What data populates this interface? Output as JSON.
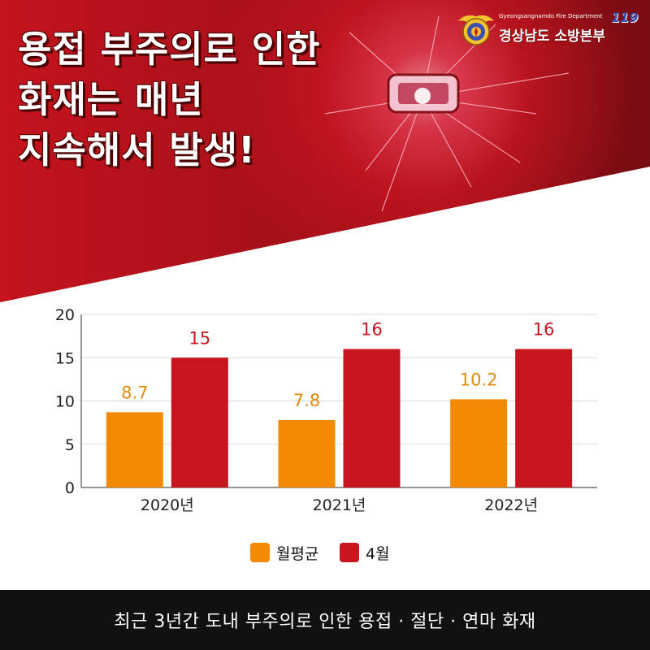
{
  "header": {
    "headline_lines": [
      "용접 부주의로 인한",
      "화재는 매년",
      "지속해서 발생!"
    ],
    "dept_english": "Gyeongsangnamdo Fire Department",
    "dept_badge": "119",
    "dept_korean": "경상남도 소방본부",
    "colors": {
      "red": "#c8141e",
      "dark_red": "#8e0c12",
      "orange": "#f38a06"
    }
  },
  "chart_data": {
    "type": "bar",
    "categories": [
      "2020년",
      "2021년",
      "2022년"
    ],
    "series": [
      {
        "name": "월평균",
        "values": [
          8.7,
          7.8,
          10.2
        ],
        "color": "#f38a06",
        "label_color": "#e08a12"
      },
      {
        "name": "4월",
        "values": [
          15,
          16,
          16
        ],
        "color": "#c8141e",
        "label_color": "#c8141e"
      }
    ],
    "ylim": [
      0,
      20
    ],
    "yticks": [
      0,
      5,
      10,
      15,
      20
    ],
    "grid": true,
    "legend": "bottom-center",
    "title": "",
    "xlabel": "",
    "ylabel": ""
  },
  "footer": {
    "caption": "최근 3년간 도내 부주의로 인한 용접 · 절단 · 연마 화재"
  }
}
